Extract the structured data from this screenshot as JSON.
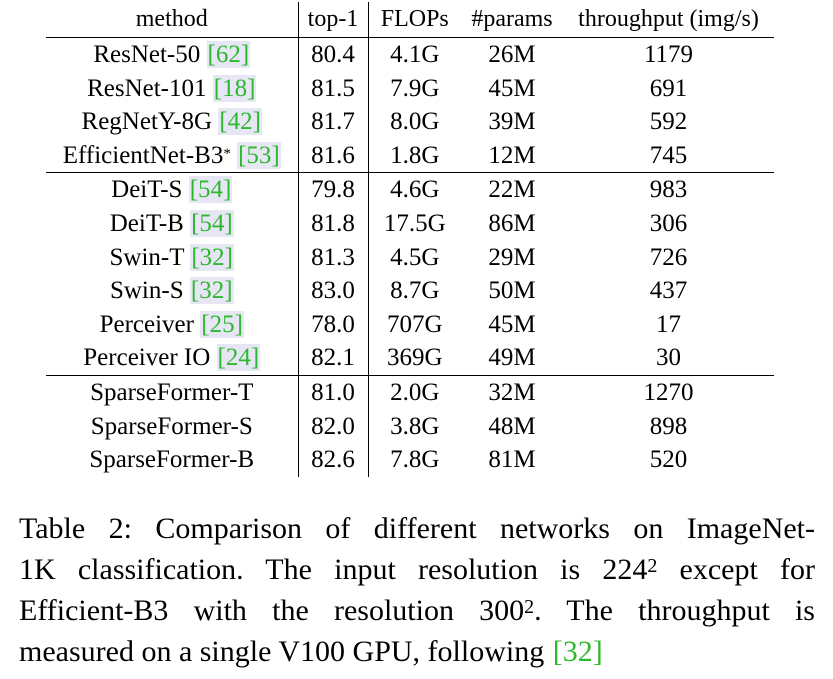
{
  "table": {
    "headers": [
      "method",
      "top-1",
      "FLOPs",
      "#params",
      "throughput (img/s)"
    ],
    "groups": [
      [
        {
          "method": "ResNet-50",
          "cite": "62",
          "sup": "",
          "top1": "80.4",
          "flops": "4.1G",
          "params": "26M",
          "throughput": "1179"
        },
        {
          "method": "ResNet-101",
          "cite": "18",
          "sup": "",
          "top1": "81.5",
          "flops": "7.9G",
          "params": "45M",
          "throughput": "691"
        },
        {
          "method": "RegNetY-8G",
          "cite": "42",
          "sup": "",
          "top1": "81.7",
          "flops": "8.0G",
          "params": "39M",
          "throughput": "592"
        },
        {
          "method": "EfficientNet-B3",
          "cite": "53",
          "sup": "*",
          "top1": "81.6",
          "flops": "1.8G",
          "params": "12M",
          "throughput": "745"
        }
      ],
      [
        {
          "method": "DeiT-S",
          "cite": "54",
          "sup": "",
          "top1": "79.8",
          "flops": "4.6G",
          "params": "22M",
          "throughput": "983"
        },
        {
          "method": "DeiT-B",
          "cite": "54",
          "sup": "",
          "top1": "81.8",
          "flops": "17.5G",
          "params": "86M",
          "throughput": "306"
        },
        {
          "method": "Swin-T",
          "cite": "32",
          "sup": "",
          "top1": "81.3",
          "flops": "4.5G",
          "params": "29M",
          "throughput": "726"
        },
        {
          "method": "Swin-S",
          "cite": "32",
          "sup": "",
          "top1": "83.0",
          "flops": "8.7G",
          "params": "50M",
          "throughput": "437"
        },
        {
          "method": "Perceiver",
          "cite": "25",
          "sup": "",
          "top1": "78.0",
          "flops": "707G",
          "params": "45M",
          "throughput": "17"
        },
        {
          "method": "Perceiver IO",
          "cite": "24",
          "sup": "",
          "top1": "82.1",
          "flops": "369G",
          "params": "49M",
          "throughput": "30"
        }
      ],
      [
        {
          "method": "SparseFormer-T",
          "cite": "",
          "sup": "",
          "top1": "81.0",
          "flops": "2.0G",
          "params": "32M",
          "throughput": "1270"
        },
        {
          "method": "SparseFormer-S",
          "cite": "",
          "sup": "",
          "top1": "82.0",
          "flops": "3.8G",
          "params": "48M",
          "throughput": "898"
        },
        {
          "method": "SparseFormer-B",
          "cite": "",
          "sup": "",
          "top1": "82.6",
          "flops": "7.8G",
          "params": "81M",
          "throughput": "520"
        }
      ]
    ]
  },
  "caption": {
    "line1": "Table 2: Comparison of different networks on ImageNet-",
    "line2_a": "1K classification.  The input resolution is 224",
    "line2_sup": "2",
    "line2_b": " except for",
    "line3_a": "Efficient-B3 with the resolution 300",
    "line3_sup": "2",
    "line3_b": ".  The throughput is",
    "line4_a": "measured on a single V100 GPU, following ",
    "line4_cite": "[32]"
  },
  "colors": {
    "cite_text": "#2eb82e",
    "cite_highlight": "#e6e6f5"
  }
}
